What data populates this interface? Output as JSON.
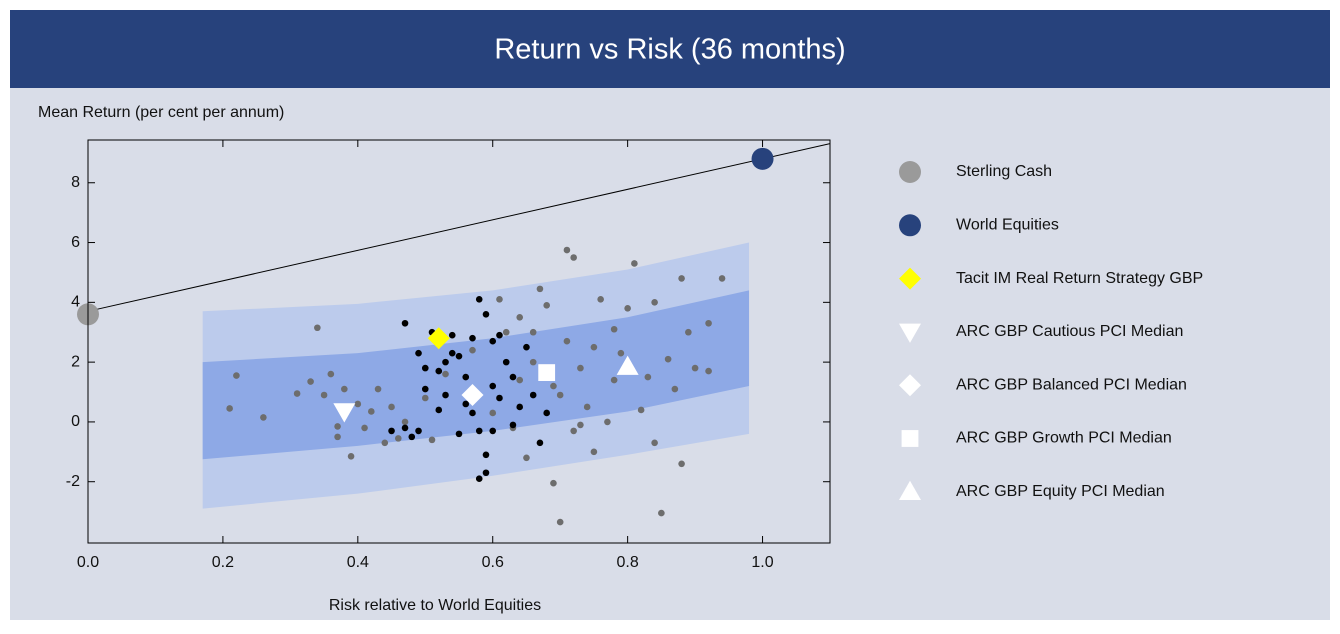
{
  "chart_data": {
    "type": "scatter",
    "title": "Return vs Risk (36 months)",
    "y_label": "Mean Return (per cent per annum)",
    "x_label": "Risk relative to World Equities",
    "xlim": [
      0,
      1.1
    ],
    "ylim": [
      -4.05,
      9.43
    ],
    "xticks": [
      {
        "value": 0,
        "label": "0.0"
      },
      0.2,
      0.4,
      0.6,
      0.8,
      {
        "value": 1,
        "label": "1.0"
      }
    ],
    "yticks": [
      -2,
      0,
      2,
      4,
      6,
      8
    ],
    "line": {
      "color": "#000000",
      "x": [
        0,
        1.1
      ],
      "y": [
        3.7,
        9.31
      ]
    },
    "bands": [
      {
        "color": "#bccbec",
        "x": [
          0.17,
          0.4,
          0.6,
          0.8,
          0.98
        ],
        "upper": [
          3.7,
          3.95,
          4.4,
          5.1,
          6.0
        ],
        "lower": [
          -2.9,
          -2.4,
          -1.8,
          -1.1,
          -0.4
        ]
      },
      {
        "color": "#8ea9e6",
        "x": [
          0.17,
          0.4,
          0.6,
          0.8,
          0.98
        ],
        "upper": [
          2.0,
          2.3,
          2.8,
          3.5,
          4.4
        ],
        "lower": [
          -1.25,
          -0.8,
          -0.3,
          0.35,
          1.2
        ]
      }
    ],
    "points": [
      {
        "color": "#6d6d6d",
        "x": [
          0.21,
          0.22,
          0.26,
          0.31,
          0.33,
          0.34,
          0.35,
          0.36,
          0.37,
          0.37,
          0.38,
          0.39,
          0.4,
          0.41,
          0.42,
          0.43,
          0.44,
          0.45,
          0.46,
          0.47,
          0.5,
          0.51,
          0.53,
          0.57,
          0.6,
          0.62,
          0.63,
          0.64,
          0.65,
          0.67,
          0.68,
          0.69,
          0.7,
          0.71,
          0.72,
          0.72,
          0.73,
          0.74,
          0.75,
          0.76,
          0.77,
          0.78,
          0.79,
          0.8,
          0.81,
          0.82,
          0.83,
          0.84,
          0.84,
          0.85,
          0.86,
          0.87,
          0.88,
          0.88,
          0.89,
          0.9,
          0.92,
          0.92,
          0.94,
          0.66,
          0.69,
          0.71,
          0.7,
          0.75,
          0.78,
          0.73,
          0.64,
          0.61,
          0.66
        ],
        "y": [
          0.45,
          1.55,
          0.15,
          0.95,
          1.35,
          3.15,
          0.9,
          1.6,
          -0.15,
          -0.5,
          1.1,
          -1.15,
          0.6,
          -0.2,
          0.35,
          1.1,
          -0.7,
          0.5,
          -0.55,
          0.0,
          0.8,
          -0.6,
          1.6,
          2.4,
          0.3,
          3.0,
          -0.2,
          3.5,
          -1.2,
          4.45,
          3.9,
          -2.05,
          -3.35,
          5.75,
          5.5,
          -0.3,
          1.8,
          0.5,
          -1.0,
          4.1,
          0.0,
          3.1,
          2.3,
          3.8,
          5.3,
          0.4,
          1.5,
          4.0,
          -0.7,
          -3.05,
          2.1,
          1.1,
          4.8,
          -1.4,
          3.0,
          1.8,
          3.3,
          1.7,
          4.8,
          2.0,
          1.2,
          2.7,
          0.9,
          2.5,
          1.4,
          -0.1,
          1.4,
          4.1,
          3.0
        ]
      },
      {
        "color": "#000000",
        "x": [
          0.47,
          0.49,
          0.5,
          0.51,
          0.52,
          0.53,
          0.54,
          0.55,
          0.56,
          0.57,
          0.58,
          0.59,
          0.6,
          0.61,
          0.62,
          0.63,
          0.64,
          0.65,
          0.66,
          0.68,
          0.55,
          0.58,
          0.59,
          0.6,
          0.58,
          0.59,
          0.57,
          0.53,
          0.52,
          0.49,
          0.47,
          0.48,
          0.56,
          0.61,
          0.6,
          0.67,
          0.63,
          0.45,
          0.5,
          0.54
        ],
        "y": [
          3.3,
          2.3,
          1.8,
          3.0,
          1.7,
          2.0,
          2.9,
          2.2,
          1.5,
          2.8,
          4.1,
          3.6,
          2.7,
          2.9,
          2.0,
          1.5,
          0.5,
          2.5,
          0.9,
          0.3,
          -0.4,
          -0.3,
          -1.1,
          -0.3,
          -1.9,
          -1.7,
          0.3,
          0.9,
          0.4,
          -0.3,
          -0.2,
          -0.5,
          0.6,
          0.8,
          1.2,
          -0.7,
          -0.1,
          -0.3,
          1.1,
          2.3
        ]
      }
    ],
    "series": [
      {
        "name": "Sterling Cash",
        "color": "#9a9a9a",
        "marker": "circle",
        "x": [
          0
        ],
        "y": [
          3.6
        ]
      },
      {
        "name": "World Equities",
        "color": "#27427c",
        "marker": "circle",
        "x": [
          1
        ],
        "y": [
          8.8
        ]
      },
      {
        "name": "Tacit IM Real Return Strategy GBP",
        "color": "#ffff00",
        "marker": "diamond",
        "x": [
          0.52
        ],
        "y": [
          2.8
        ]
      },
      {
        "name": "ARC GBP Cautious PCI Median",
        "color": "#ffffff",
        "marker": "triangle-down",
        "x": [
          0.38
        ],
        "y": [
          0.35
        ]
      },
      {
        "name": "ARC GBP Balanced PCI Median",
        "color": "#ffffff",
        "marker": "diamond",
        "x": [
          0.57
        ],
        "y": [
          0.9
        ]
      },
      {
        "name": "ARC GBP Growth PCI Median",
        "color": "#ffffff",
        "marker": "square",
        "x": [
          0.68
        ],
        "y": [
          1.65
        ]
      },
      {
        "name": "ARC GBP Equity PCI Median",
        "color": "#ffffff",
        "marker": "triangle-up",
        "x": [
          0.8
        ],
        "y": [
          1.85
        ]
      }
    ]
  }
}
